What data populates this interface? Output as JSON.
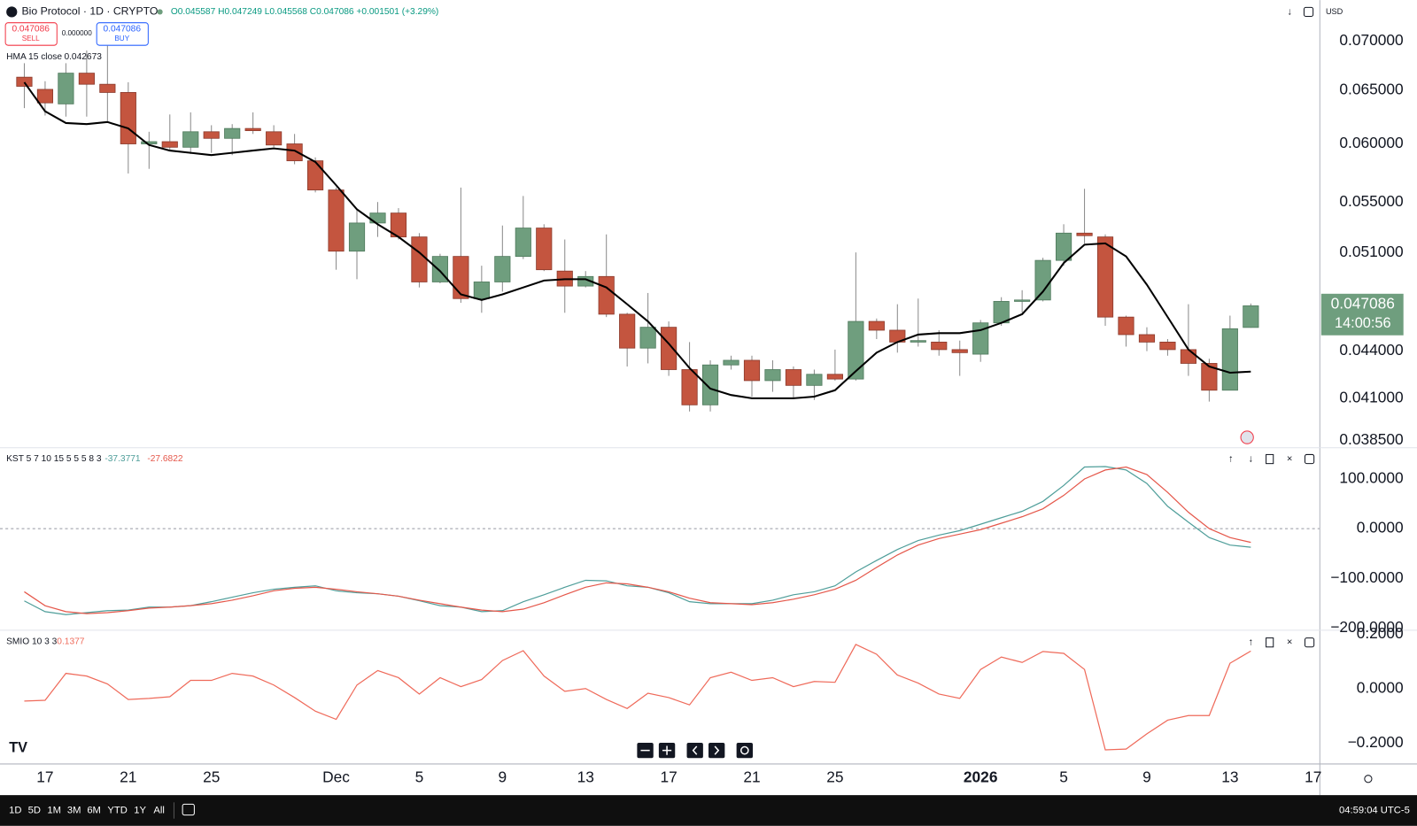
{
  "ui": {
    "symbol": "Bio Protocol · 1D · CRYPTO",
    "ohlc": "O0.045587 H0.047249 L0.045568 C0.047086 +0.001501 (+3.29%)",
    "sell": {
      "price": "0.047086",
      "label": "SELL"
    },
    "spread": "0.000000",
    "buy": {
      "price": "0.047086",
      "label": "BUY"
    },
    "currency": "USD",
    "price_badge": {
      "price": "0.047086",
      "countdown": "14:00:56"
    },
    "timeframes": [
      "1D",
      "5D",
      "1M",
      "3M",
      "6M",
      "YTD",
      "1Y",
      "All"
    ],
    "clock": "04:59:04 UTC-5"
  },
  "chart_data": [
    {
      "type": "candlestick",
      "log_scale": true,
      "up_color": "#6f9e7e",
      "down_color": "#c4553f",
      "open": [
        0.0663,
        0.0651,
        0.0637,
        0.0667,
        0.0656,
        0.0648,
        0.06,
        0.0602,
        0.0597,
        0.0611,
        0.0605,
        0.0614,
        0.0611,
        0.06,
        0.0585,
        0.056,
        0.0511,
        0.0533,
        0.0541,
        0.0522,
        0.0488,
        0.0507,
        0.0476,
        0.0488,
        0.0507,
        0.0529,
        0.0496,
        0.0485,
        0.0492,
        0.0465,
        0.0442,
        0.0456,
        0.0428,
        0.0406,
        0.0431,
        0.0434,
        0.0421,
        0.0428,
        0.0418,
        0.0425,
        0.0422,
        0.046,
        0.0454,
        0.0446,
        0.0446,
        0.0441,
        0.0438,
        0.0459,
        0.0474,
        0.0475,
        0.0504,
        0.0525,
        0.0522,
        0.0463,
        0.0451,
        0.0446,
        0.0441,
        0.0432,
        0.0415,
        0.045587
      ],
      "high": [
        0.0677,
        0.0659,
        0.0677,
        0.069,
        0.0695,
        0.0658,
        0.0611,
        0.0627,
        0.0629,
        0.0617,
        0.0618,
        0.0629,
        0.0617,
        0.0609,
        0.0588,
        0.0562,
        0.0544,
        0.055,
        0.0545,
        0.0525,
        0.0509,
        0.0562,
        0.05,
        0.0531,
        0.0555,
        0.0532,
        0.052,
        0.0496,
        0.0524,
        0.0466,
        0.048,
        0.046,
        0.0446,
        0.0434,
        0.0437,
        0.0437,
        0.0434,
        0.043,
        0.0428,
        0.0441,
        0.051,
        0.0462,
        0.0472,
        0.0476,
        0.0454,
        0.0447,
        0.0461,
        0.0477,
        0.0482,
        0.0506,
        0.0532,
        0.0561,
        0.0524,
        0.0464,
        0.0456,
        0.0448,
        0.0472,
        0.0435,
        0.0464,
        0.047249
      ],
      "low": [
        0.0633,
        0.0626,
        0.0625,
        0.0625,
        0.0621,
        0.0574,
        0.0578,
        0.0594,
        0.0591,
        0.0592,
        0.059,
        0.0609,
        0.0597,
        0.0582,
        0.0558,
        0.0497,
        0.049,
        0.0522,
        0.052,
        0.0484,
        0.0487,
        0.0473,
        0.0466,
        0.0481,
        0.0505,
        0.0496,
        0.0466,
        0.0484,
        0.0463,
        0.043,
        0.0432,
        0.0424,
        0.0402,
        0.0402,
        0.0428,
        0.0411,
        0.0414,
        0.041,
        0.0409,
        0.0421,
        0.0421,
        0.0448,
        0.0439,
        0.0443,
        0.0437,
        0.0424,
        0.0433,
        0.0457,
        0.0466,
        0.0474,
        0.05,
        0.0517,
        0.0457,
        0.0443,
        0.044,
        0.0437,
        0.0424,
        0.0408,
        0.0415,
        0.045568
      ],
      "close": [
        0.0654,
        0.0638,
        0.0667,
        0.0656,
        0.0648,
        0.06,
        0.0602,
        0.0597,
        0.0611,
        0.0605,
        0.0614,
        0.0612,
        0.0599,
        0.0585,
        0.056,
        0.0511,
        0.0533,
        0.0541,
        0.0522,
        0.0488,
        0.0507,
        0.0476,
        0.0488,
        0.0507,
        0.0529,
        0.0497,
        0.0485,
        0.0492,
        0.0465,
        0.0442,
        0.0456,
        0.0428,
        0.0406,
        0.0431,
        0.0434,
        0.0421,
        0.0428,
        0.0418,
        0.0425,
        0.0422,
        0.046,
        0.0454,
        0.0446,
        0.0447,
        0.0441,
        0.0439,
        0.0459,
        0.0474,
        0.0475,
        0.0504,
        0.0525,
        0.0523,
        0.0463,
        0.0451,
        0.0446,
        0.0441,
        0.0432,
        0.0415,
        0.0455,
        0.047086
      ],
      "overlay": {
        "name": "HMA 15 close",
        "color": "#000000",
        "values": [
          0.0658,
          0.063,
          0.0619,
          0.0618,
          0.062,
          0.0614,
          0.0599,
          0.0594,
          0.0592,
          0.059,
          0.0592,
          0.0594,
          0.0596,
          0.0594,
          0.0584,
          0.0564,
          0.0544,
          0.0532,
          0.0522,
          0.051,
          0.0496,
          0.0479,
          0.0475,
          0.0479,
          0.0484,
          0.0489,
          0.049,
          0.049,
          0.0484,
          0.0472,
          0.046,
          0.0445,
          0.0429,
          0.0416,
          0.0412,
          0.041,
          0.041,
          0.041,
          0.0411,
          0.0415,
          0.0427,
          0.0439,
          0.0446,
          0.0451,
          0.0452,
          0.0452,
          0.0454,
          0.0459,
          0.0465,
          0.0481,
          0.0502,
          0.0516,
          0.0517,
          0.0507,
          0.0486,
          0.0463,
          0.0441,
          0.043,
          0.0426,
          0.042673
        ]
      },
      "ylim": [
        0.0381,
        0.0744
      ],
      "yticks": [
        {
          "value": 0.07,
          "label": "0.070000"
        },
        {
          "value": 0.065,
          "label": "0.065000"
        },
        {
          "value": 0.06,
          "label": "0.060000"
        },
        {
          "value": 0.055,
          "label": "0.055000"
        },
        {
          "value": 0.051,
          "label": "0.051000"
        },
        {
          "value": 0.044,
          "label": "0.044000"
        },
        {
          "value": 0.041,
          "label": "0.041000"
        },
        {
          "value": 0.0385,
          "label": "0.038500"
        }
      ],
      "xlim": [
        -1.17,
        62.3
      ],
      "xticks": [
        {
          "value": 1,
          "label": "17"
        },
        {
          "value": 5,
          "label": "21"
        },
        {
          "value": 9,
          "label": "25"
        },
        {
          "value": 15,
          "label": "Dec"
        },
        {
          "value": 19,
          "label": "5"
        },
        {
          "value": 23,
          "label": "9"
        },
        {
          "value": 27,
          "label": "13"
        },
        {
          "value": 31,
          "label": "17"
        },
        {
          "value": 35,
          "label": "21"
        },
        {
          "value": 39,
          "label": "25"
        },
        {
          "value": 46,
          "label": "2026"
        },
        {
          "value": 50,
          "label": "5"
        },
        {
          "value": 54,
          "label": "9"
        },
        {
          "value": 58,
          "label": "13"
        },
        {
          "value": 62,
          "label": "17"
        }
      ]
    },
    {
      "type": "line",
      "title": "KST 5 7 10 15 5 5 5 8 3",
      "zero_line": true,
      "series": [
        {
          "color": "#4f9e9a",
          "values": [
            -145.5,
            -167,
            -173,
            -169,
            -165,
            -164,
            -158,
            -158,
            -155,
            -147,
            -138,
            -129,
            -122,
            -118,
            -115,
            -125,
            -129,
            -131,
            -136,
            -145,
            -155,
            -158,
            -167,
            -165,
            -147,
            -133,
            -118,
            -104,
            -105,
            -115,
            -118,
            -129,
            -147,
            -151,
            -151,
            -151,
            -144,
            -133,
            -127,
            -115,
            -87,
            -64,
            -42,
            -24,
            -13,
            -4,
            9,
            22,
            35,
            55,
            87,
            124,
            125,
            118,
            91,
            45,
            13,
            -18,
            -33,
            -37.3771
          ]
        },
        {
          "color": "#e5574a",
          "values": [
            -127,
            -155,
            -167,
            -171,
            -169,
            -165,
            -160,
            -158,
            -155,
            -151,
            -144,
            -135,
            -125,
            -120,
            -118,
            -122,
            -127,
            -131,
            -136,
            -144,
            -151,
            -158,
            -164,
            -167,
            -162,
            -149,
            -133,
            -118,
            -109,
            -111,
            -118,
            -127,
            -140,
            -149,
            -151,
            -153,
            -149,
            -142,
            -133,
            -122,
            -104,
            -78,
            -53,
            -33,
            -20,
            -11,
            -2,
            11,
            24,
            40,
            67,
            100,
            118,
            124,
            109,
            73,
            33,
            0,
            -18,
            -27.6822
          ]
        }
      ],
      "ylim": [
        -203.6,
        160
      ],
      "yticks": [
        {
          "value": 100,
          "label": "100.0000"
        },
        {
          "value": 0,
          "label": "0.0000"
        },
        {
          "value": -100,
          "label": "−100.0000"
        },
        {
          "value": -200,
          "label": "−200.0000"
        }
      ]
    },
    {
      "type": "line",
      "title": "SMIO 10 3 3",
      "series": [
        {
          "color": "#ef6a5a",
          "values": [
            -0.046,
            -0.043,
            0.056,
            0.046,
            0.017,
            -0.04,
            -0.036,
            -0.03,
            0.03,
            0.03,
            0.056,
            0.046,
            0.013,
            -0.033,
            -0.083,
            -0.113,
            0.013,
            0.066,
            0.04,
            -0.02,
            0.04,
            0.007,
            0.033,
            0.103,
            0.139,
            0.046,
            -0.01,
            0.0,
            -0.04,
            -0.073,
            -0.017,
            -0.033,
            -0.06,
            0.04,
            0.06,
            0.03,
            0.04,
            0.007,
            0.026,
            0.023,
            0.162,
            0.126,
            0.05,
            0.02,
            -0.02,
            -0.036,
            0.07,
            0.116,
            0.096,
            0.136,
            0.129,
            0.07,
            -0.225,
            -0.222,
            -0.166,
            -0.116,
            -0.099,
            -0.099,
            0.093,
            0.1377
          ]
        }
      ],
      "ylim": [
        -0.275,
        0.209
      ],
      "yticks": [
        {
          "value": 0.2,
          "label": "0.2000"
        },
        {
          "value": 0,
          "label": "0.0000"
        },
        {
          "value": -0.2,
          "label": "−0.2000"
        }
      ]
    }
  ]
}
